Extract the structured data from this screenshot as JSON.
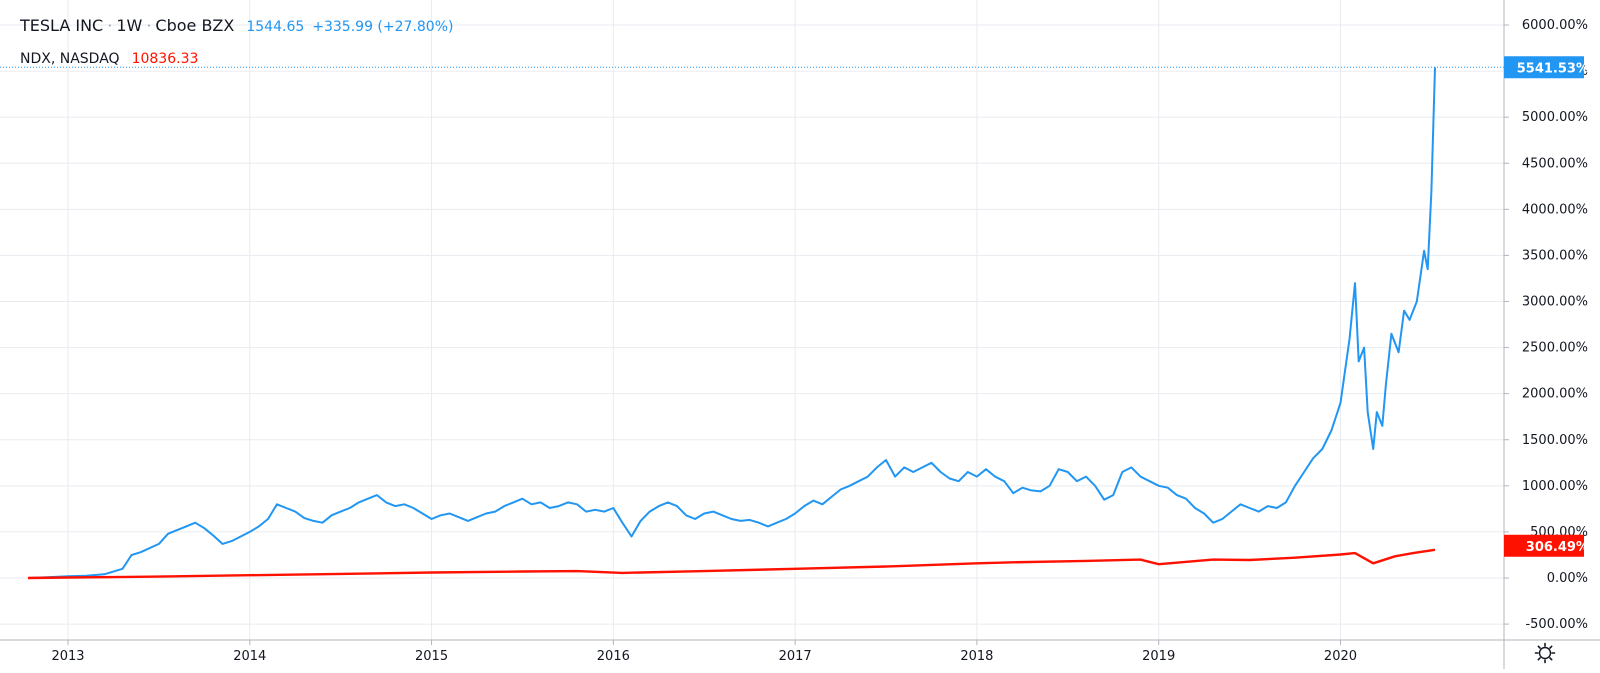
{
  "legend": {
    "symbol": "TESLA INC",
    "interval": "1W",
    "exchange": "Cboe BZX",
    "last": "1544.65",
    "change": "+335.99 (+27.80%)",
    "comparison_symbol": "NDX, NASDAQ",
    "comparison_last": "10836.33"
  },
  "badges": {
    "tsla": "5541.53%",
    "ndx": "306.49%"
  },
  "colors": {
    "tsla": "#2196f3",
    "ndx": "#ff1100",
    "grid": "#e0e3eb",
    "axis_text": "#131722"
  },
  "icons": {
    "settings": "gear-icon"
  },
  "chart_data": {
    "type": "line",
    "xlabel": "",
    "ylabel": "",
    "x_ticks": [
      "2013",
      "2014",
      "2015",
      "2016",
      "2017",
      "2018",
      "2019",
      "2020"
    ],
    "y_ticks": [
      "6000.00%",
      "5500.00%",
      "5000.00%",
      "4500.00%",
      "4000.00%",
      "3500.00%",
      "3000.00%",
      "2500.00%",
      "2000.00%",
      "1500.00%",
      "1000.00%",
      "500.00%",
      "0.00%",
      "-500.00%"
    ],
    "ylim": [
      -500,
      6000
    ],
    "xlim": [
      2012.78,
      2020.72
    ],
    "grid": true,
    "series": [
      {
        "name": "TESLA INC",
        "color": "#2196f3",
        "points": [
          [
            2012.78,
            0
          ],
          [
            2012.9,
            10
          ],
          [
            2013.0,
            20
          ],
          [
            2013.1,
            25
          ],
          [
            2013.2,
            40
          ],
          [
            2013.3,
            100
          ],
          [
            2013.35,
            250
          ],
          [
            2013.4,
            280
          ],
          [
            2013.5,
            370
          ],
          [
            2013.55,
            480
          ],
          [
            2013.6,
            520
          ],
          [
            2013.65,
            560
          ],
          [
            2013.7,
            600
          ],
          [
            2013.75,
            540
          ],
          [
            2013.8,
            460
          ],
          [
            2013.85,
            370
          ],
          [
            2013.9,
            400
          ],
          [
            2013.95,
            450
          ],
          [
            2014.0,
            500
          ],
          [
            2014.05,
            560
          ],
          [
            2014.1,
            640
          ],
          [
            2014.15,
            800
          ],
          [
            2014.2,
            760
          ],
          [
            2014.25,
            720
          ],
          [
            2014.3,
            650
          ],
          [
            2014.35,
            620
          ],
          [
            2014.4,
            600
          ],
          [
            2014.45,
            680
          ],
          [
            2014.5,
            720
          ],
          [
            2014.55,
            760
          ],
          [
            2014.6,
            820
          ],
          [
            2014.65,
            860
          ],
          [
            2014.7,
            900
          ],
          [
            2014.75,
            820
          ],
          [
            2014.8,
            780
          ],
          [
            2014.85,
            800
          ],
          [
            2014.9,
            760
          ],
          [
            2014.95,
            700
          ],
          [
            2015.0,
            640
          ],
          [
            2015.05,
            680
          ],
          [
            2015.1,
            700
          ],
          [
            2015.15,
            660
          ],
          [
            2015.2,
            620
          ],
          [
            2015.25,
            660
          ],
          [
            2015.3,
            700
          ],
          [
            2015.35,
            720
          ],
          [
            2015.4,
            780
          ],
          [
            2015.45,
            820
          ],
          [
            2015.5,
            860
          ],
          [
            2015.55,
            800
          ],
          [
            2015.6,
            820
          ],
          [
            2015.65,
            760
          ],
          [
            2015.7,
            780
          ],
          [
            2015.75,
            820
          ],
          [
            2015.8,
            800
          ],
          [
            2015.85,
            720
          ],
          [
            2015.9,
            740
          ],
          [
            2015.95,
            720
          ],
          [
            2016.0,
            760
          ],
          [
            2016.05,
            600
          ],
          [
            2016.1,
            450
          ],
          [
            2016.15,
            620
          ],
          [
            2016.2,
            720
          ],
          [
            2016.25,
            780
          ],
          [
            2016.3,
            820
          ],
          [
            2016.35,
            780
          ],
          [
            2016.4,
            680
          ],
          [
            2016.45,
            640
          ],
          [
            2016.5,
            700
          ],
          [
            2016.55,
            720
          ],
          [
            2016.6,
            680
          ],
          [
            2016.65,
            640
          ],
          [
            2016.7,
            620
          ],
          [
            2016.75,
            630
          ],
          [
            2016.8,
            600
          ],
          [
            2016.85,
            560
          ],
          [
            2016.9,
            600
          ],
          [
            2016.95,
            640
          ],
          [
            2017.0,
            700
          ],
          [
            2017.05,
            780
          ],
          [
            2017.1,
            840
          ],
          [
            2017.15,
            800
          ],
          [
            2017.2,
            880
          ],
          [
            2017.25,
            960
          ],
          [
            2017.3,
            1000
          ],
          [
            2017.35,
            1050
          ],
          [
            2017.4,
            1100
          ],
          [
            2017.45,
            1200
          ],
          [
            2017.5,
            1280
          ],
          [
            2017.55,
            1100
          ],
          [
            2017.6,
            1200
          ],
          [
            2017.65,
            1150
          ],
          [
            2017.7,
            1200
          ],
          [
            2017.75,
            1250
          ],
          [
            2017.8,
            1150
          ],
          [
            2017.85,
            1080
          ],
          [
            2017.9,
            1050
          ],
          [
            2017.95,
            1150
          ],
          [
            2018.0,
            1100
          ],
          [
            2018.05,
            1180
          ],
          [
            2018.1,
            1100
          ],
          [
            2018.15,
            1050
          ],
          [
            2018.2,
            920
          ],
          [
            2018.25,
            980
          ],
          [
            2018.3,
            950
          ],
          [
            2018.35,
            940
          ],
          [
            2018.4,
            1000
          ],
          [
            2018.45,
            1180
          ],
          [
            2018.5,
            1150
          ],
          [
            2018.55,
            1050
          ],
          [
            2018.6,
            1100
          ],
          [
            2018.65,
            1000
          ],
          [
            2018.7,
            850
          ],
          [
            2018.75,
            900
          ],
          [
            2018.8,
            1150
          ],
          [
            2018.85,
            1200
          ],
          [
            2018.9,
            1100
          ],
          [
            2018.95,
            1050
          ],
          [
            2019.0,
            1000
          ],
          [
            2019.05,
            980
          ],
          [
            2019.1,
            900
          ],
          [
            2019.15,
            860
          ],
          [
            2019.2,
            760
          ],
          [
            2019.25,
            700
          ],
          [
            2019.3,
            600
          ],
          [
            2019.35,
            640
          ],
          [
            2019.4,
            720
          ],
          [
            2019.45,
            800
          ],
          [
            2019.5,
            760
          ],
          [
            2019.55,
            720
          ],
          [
            2019.6,
            780
          ],
          [
            2019.65,
            760
          ],
          [
            2019.7,
            820
          ],
          [
            2019.75,
            1000
          ],
          [
            2019.8,
            1150
          ],
          [
            2019.85,
            1300
          ],
          [
            2019.9,
            1400
          ],
          [
            2019.95,
            1600
          ],
          [
            2020.0,
            1900
          ],
          [
            2020.05,
            2600
          ],
          [
            2020.08,
            3200
          ],
          [
            2020.1,
            2350
          ],
          [
            2020.13,
            2500
          ],
          [
            2020.15,
            1800
          ],
          [
            2020.18,
            1400
          ],
          [
            2020.2,
            1800
          ],
          [
            2020.23,
            1650
          ],
          [
            2020.25,
            2100
          ],
          [
            2020.28,
            2650
          ],
          [
            2020.32,
            2450
          ],
          [
            2020.35,
            2900
          ],
          [
            2020.38,
            2800
          ],
          [
            2020.42,
            3000
          ],
          [
            2020.46,
            3550
          ],
          [
            2020.48,
            3350
          ],
          [
            2020.5,
            4200
          ],
          [
            2020.52,
            5541.53
          ]
        ]
      },
      {
        "name": "NDX, NASDAQ",
        "color": "#ff1100",
        "points": [
          [
            2012.78,
            0
          ],
          [
            2013.0,
            5
          ],
          [
            2013.5,
            15
          ],
          [
            2014.0,
            30
          ],
          [
            2014.5,
            45
          ],
          [
            2015.0,
            60
          ],
          [
            2015.5,
            70
          ],
          [
            2015.8,
            75
          ],
          [
            2016.05,
            55
          ],
          [
            2016.15,
            60
          ],
          [
            2016.5,
            75
          ],
          [
            2017.0,
            100
          ],
          [
            2017.5,
            125
          ],
          [
            2018.0,
            160
          ],
          [
            2018.2,
            170
          ],
          [
            2018.6,
            185
          ],
          [
            2018.9,
            200
          ],
          [
            2019.0,
            150
          ],
          [
            2019.3,
            200
          ],
          [
            2019.5,
            195
          ],
          [
            2019.75,
            220
          ],
          [
            2020.0,
            255
          ],
          [
            2020.08,
            270
          ],
          [
            2020.18,
            160
          ],
          [
            2020.3,
            235
          ],
          [
            2020.4,
            270
          ],
          [
            2020.52,
            306.49
          ]
        ]
      }
    ]
  }
}
